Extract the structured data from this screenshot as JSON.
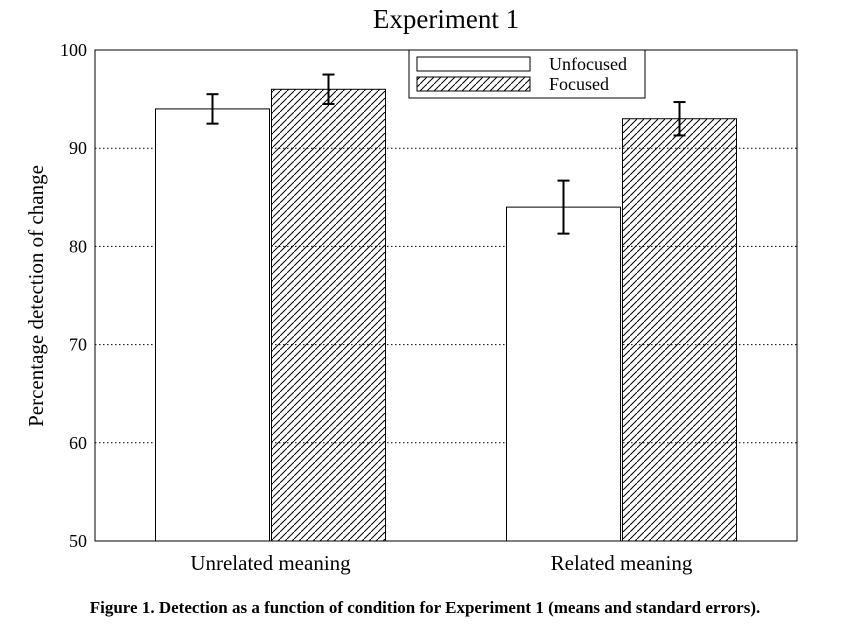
{
  "chart_data": {
    "type": "bar",
    "title": "Experiment 1",
    "ylabel": "Percentage detection of change",
    "xlabel": "",
    "categories": [
      "Unrelated meaning",
      "Related meaning"
    ],
    "ylim": [
      50,
      100
    ],
    "yticks": [
      50,
      60,
      70,
      80,
      90,
      100
    ],
    "grid": "horizontal-dotted",
    "legend_position": "top-right",
    "series": [
      {
        "name": "Unfocused",
        "fill": "white",
        "values": [
          94,
          84
        ],
        "errors": [
          1.5,
          2.7
        ]
      },
      {
        "name": "Focused",
        "fill": "hatched",
        "values": [
          96,
          93
        ],
        "errors": [
          1.5,
          1.7
        ]
      }
    ]
  },
  "caption": "Figure 1. Detection as a function of condition for Experiment 1 (means and standard errors)."
}
